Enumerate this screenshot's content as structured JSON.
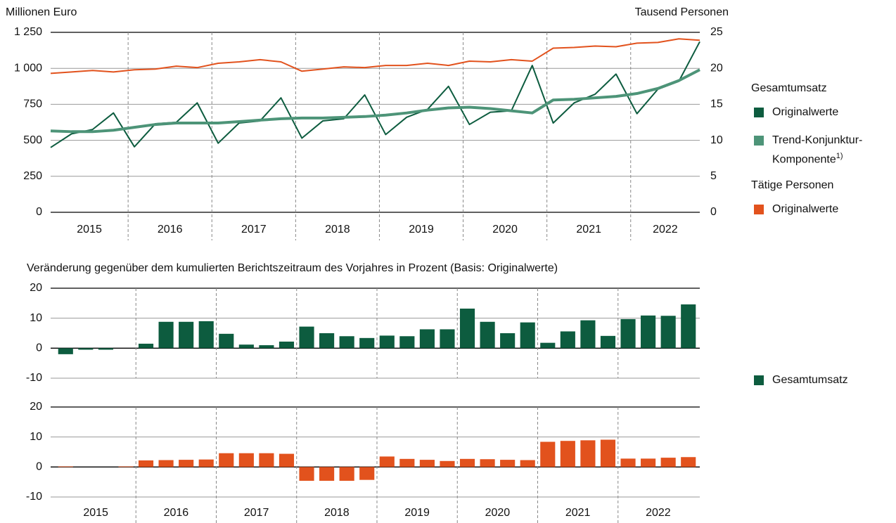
{
  "chart_data": [
    {
      "type": "line",
      "ylabel": "Millionen Euro",
      "y2label": "Tausend Personen",
      "groups": [
        "2015",
        "2016",
        "2017",
        "2018",
        "2019",
        "2020",
        "2021",
        "2022"
      ],
      "ylim": [
        0,
        1250
      ],
      "yticks": [
        0,
        250,
        500,
        750,
        {
          "value": 1000,
          "label": "1 000"
        },
        {
          "value": 1250,
          "label": "1 250"
        }
      ],
      "y2lim": [
        0,
        25
      ],
      "y2ticks": [
        0,
        5,
        10,
        15,
        20,
        25
      ],
      "grid": true,
      "legend_groups": [
        "Gesamtumsatz",
        "Tätige Personen"
      ],
      "series": [
        {
          "name": "Originalwerte",
          "legend_group": 0,
          "color": "#0d5c3f",
          "width": 2,
          "values": [
            450,
            545,
            575,
            690,
            455,
            615,
            625,
            760,
            480,
            620,
            635,
            795,
            515,
            635,
            650,
            815,
            540,
            660,
            715,
            875,
            610,
            695,
            705,
            1020,
            620,
            760,
            820,
            960,
            685,
            855,
            910,
            1185
          ]
        },
        {
          "name": "Trend-Konjunktur-Komponente",
          "name_sup": "1)",
          "legend_group": 0,
          "color": "#4d9478",
          "width": 4,
          "values": [
            565,
            560,
            560,
            570,
            590,
            610,
            620,
            620,
            620,
            630,
            640,
            650,
            655,
            655,
            660,
            665,
            675,
            690,
            710,
            725,
            730,
            720,
            705,
            690,
            780,
            785,
            795,
            805,
            825,
            860,
            915,
            990
          ]
        },
        {
          "name": "Originalwerte",
          "legend_group": 1,
          "color": "#e2521d",
          "width": 2,
          "axis": "y2",
          "values": [
            19.3,
            19.5,
            19.7,
            19.5,
            19.8,
            19.9,
            20.3,
            20.1,
            20.7,
            20.9,
            21.2,
            20.9,
            19.6,
            19.9,
            20.2,
            20.1,
            20.4,
            20.4,
            20.7,
            20.4,
            21.0,
            20.9,
            21.2,
            21.0,
            22.8,
            22.9,
            23.1,
            23.0,
            23.5,
            23.6,
            24.1,
            23.9
          ]
        }
      ]
    },
    {
      "type": "bar",
      "title": "Veränderung gegenüber dem kumulierten Berichtszeitraum des Vorjahres in Prozent (Basis: Originalwerte)",
      "ylim": [
        -10,
        20
      ],
      "yticks": [
        -10,
        0,
        10,
        20
      ],
      "grid": true,
      "series": [
        {
          "name": "Gesamtumsatz",
          "color": "#0d5c3f",
          "values": [
            -2,
            -0.5,
            -0.5,
            0,
            1.5,
            8.8,
            8.8,
            9.0,
            4.8,
            1.2,
            1.0,
            2.2,
            7.2,
            5.0,
            4.0,
            3.4,
            4.2,
            4.0,
            6.3,
            6.3,
            13.2,
            8.8,
            5.0,
            8.6,
            1.8,
            5.6,
            9.3,
            4.1,
            9.7,
            10.9,
            10.8,
            14.6
          ]
        }
      ]
    },
    {
      "type": "bar",
      "groups": [
        "2015",
        "2016",
        "2017",
        "2018",
        "2019",
        "2020",
        "2021",
        "2022"
      ],
      "ylim": [
        -10,
        20
      ],
      "yticks": [
        -10,
        0,
        10,
        20
      ],
      "grid": true,
      "series": [
        {
          "name": "Tätige Personen",
          "color": "#e2521d",
          "values": [
            0.2,
            0,
            0,
            0.2,
            2.2,
            2.3,
            2.4,
            2.5,
            4.6,
            4.6,
            4.6,
            4.4,
            -4.6,
            -4.6,
            -4.6,
            -4.3,
            3.5,
            2.7,
            2.4,
            2.0,
            2.7,
            2.6,
            2.4,
            2.3,
            8.4,
            8.7,
            8.9,
            9.1,
            2.8,
            2.8,
            3.1,
            3.3
          ]
        }
      ]
    }
  ]
}
